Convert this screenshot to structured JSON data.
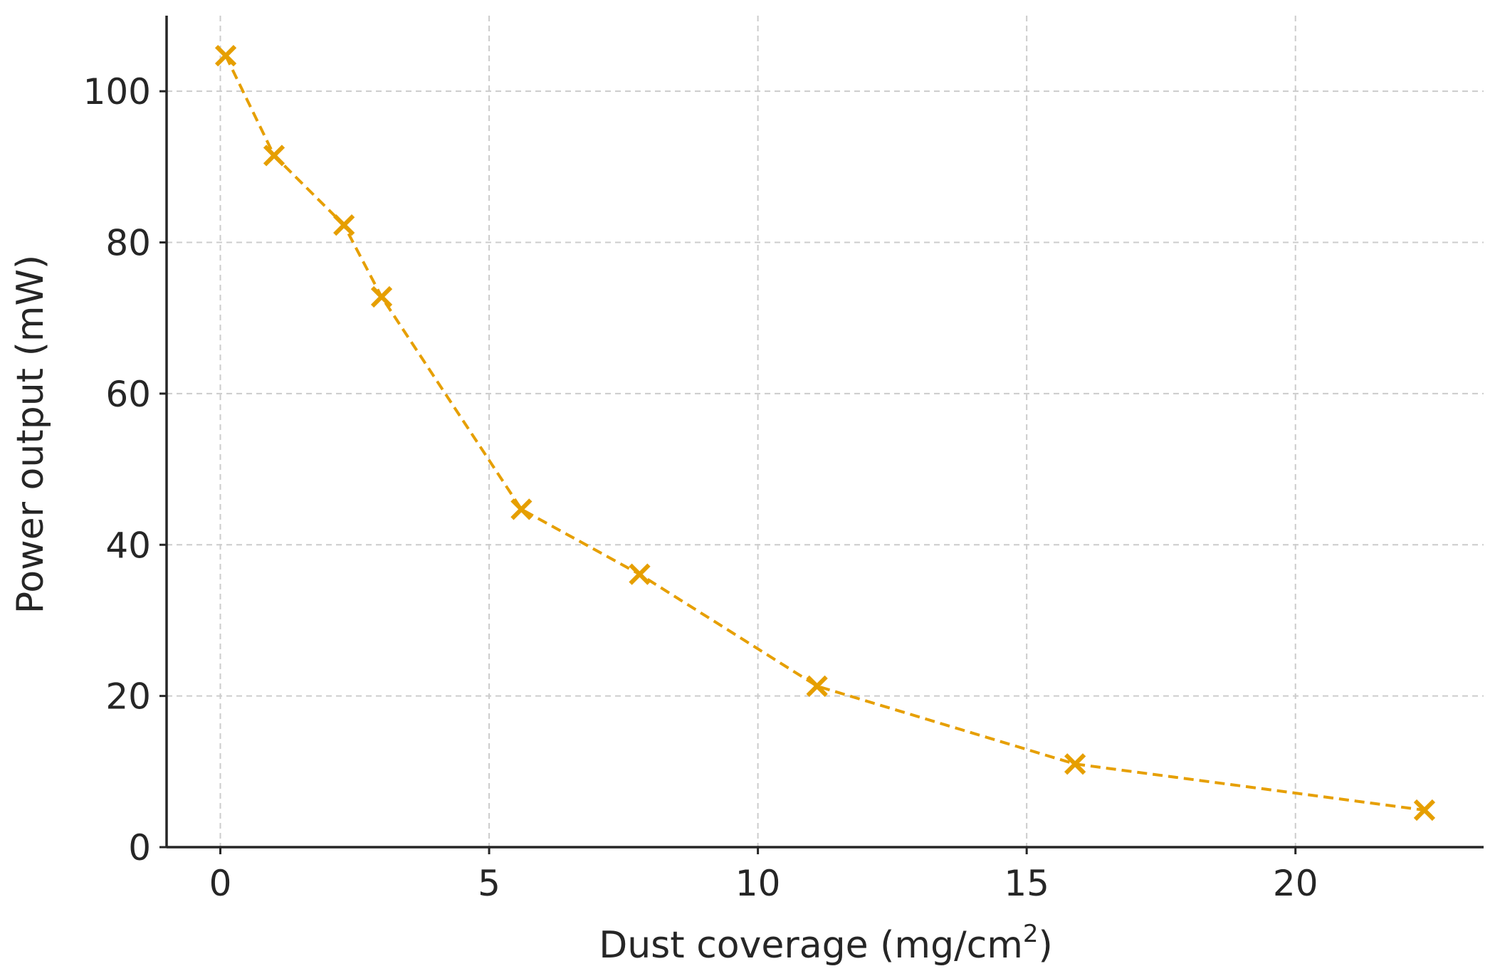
{
  "chart_data": {
    "type": "line",
    "title": "",
    "xlabel": "Dust coverage (mg/cm",
    "xlabel_superscript": "2",
    "xlabel_suffix": ")",
    "ylabel": "Power output (mW)",
    "xlim": [
      -1,
      23.5
    ],
    "ylim": [
      0,
      110
    ],
    "xticks": [
      0,
      5,
      10,
      15,
      20
    ],
    "yticks": [
      0,
      20,
      40,
      60,
      80,
      100
    ],
    "grid": true,
    "series": [
      {
        "color": "#E69F00",
        "marker": "x",
        "line_style": "dashed",
        "points": [
          {
            "x": 0.1,
            "y": 104.7
          },
          {
            "x": 1.0,
            "y": 91.5
          },
          {
            "x": 2.3,
            "y": 82.3
          },
          {
            "x": 3.0,
            "y": 72.8
          },
          {
            "x": 5.6,
            "y": 44.7
          },
          {
            "x": 7.8,
            "y": 36.1
          },
          {
            "x": 11.1,
            "y": 21.3
          },
          {
            "x": 15.9,
            "y": 11.0
          },
          {
            "x": 22.4,
            "y": 4.9
          }
        ]
      }
    ]
  }
}
